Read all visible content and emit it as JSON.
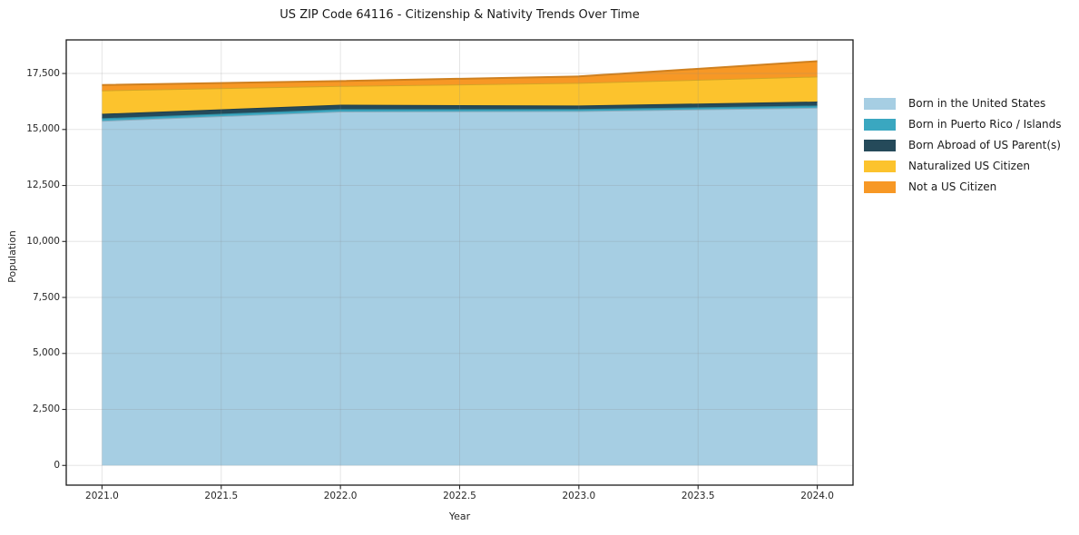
{
  "title": "US ZIP Code 64116 - Citizenship & Nativity Trends Over Time",
  "chart_data": {
    "type": "area",
    "stacked": true,
    "title": "US ZIP Code 64116 - Citizenship & Nativity Trends Over Time",
    "xlabel": "Year",
    "ylabel": "Population",
    "x": [
      2021,
      2022,
      2023,
      2024
    ],
    "series": [
      {
        "name": "Born in the United States",
        "color": "#a6cee3",
        "values": [
          15390,
          15800,
          15820,
          15970
        ]
      },
      {
        "name": "Born in Puerto Rico / Islands",
        "color": "#3aa7c0",
        "values": [
          110,
          105,
          90,
          100
        ]
      },
      {
        "name": "Born Abroad of US Parent(s)",
        "color": "#254a5a",
        "values": [
          200,
          200,
          160,
          175
        ]
      },
      {
        "name": "Naturalized US Citizen",
        "color": "#fcc32d",
        "values": [
          1045,
          840,
          1010,
          1120
        ]
      },
      {
        "name": "Not a US Citizen",
        "color": "#f79825",
        "values": [
          240,
          215,
          290,
          685
        ]
      }
    ],
    "stack_totals": [
      16985,
      17160,
      17370,
      18050
    ],
    "xticks": {
      "values": [
        2021.0,
        2021.5,
        2022.0,
        2022.5,
        2023.0,
        2023.5,
        2024.0
      ],
      "labels": [
        "2021.0",
        "2021.5",
        "2022.0",
        "2022.5",
        "2023.0",
        "2023.5",
        "2024.0"
      ]
    },
    "yticks": {
      "values": [
        0,
        2500,
        5000,
        7500,
        10000,
        12500,
        15000,
        17500
      ],
      "labels": [
        "0",
        "2,500",
        "5,000",
        "7,500",
        "10,000",
        "12,500",
        "15,000",
        "17,500"
      ]
    },
    "xlim": [
      2020.85,
      2024.15
    ],
    "ylim": [
      -880,
      19000
    ],
    "grid": true,
    "legend_position": "right",
    "colors": {
      "background": "#ffffff",
      "spine": "#1a1a1a",
      "tick": "#262626",
      "grid": "#8a8a8a",
      "title_text": "#1a1a1a"
    }
  }
}
